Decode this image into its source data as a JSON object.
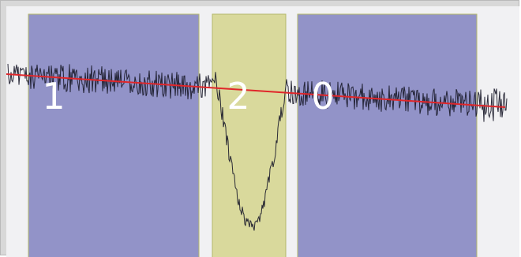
{
  "viewer": {
    "segments": [
      {
        "label": "1",
        "kind": "blue",
        "start_sample": 28,
        "end_sample": 244
      },
      {
        "label": "2",
        "kind": "yellow",
        "start_sample": 261,
        "end_sample": 354
      },
      {
        "label": "0",
        "kind": "blue",
        "start_sample": 369,
        "end_sample": 596
      }
    ],
    "colors": {
      "background": "#f1f1f3",
      "frame": "#d8d8d8",
      "blue_fill": "#9293c8",
      "yellow_fill": "#d9d99c",
      "segment_edge": "#b4b86a",
      "signal": "#1b1b2b",
      "trend": "#e0262a",
      "label": "#ffffff"
    }
  }
}
